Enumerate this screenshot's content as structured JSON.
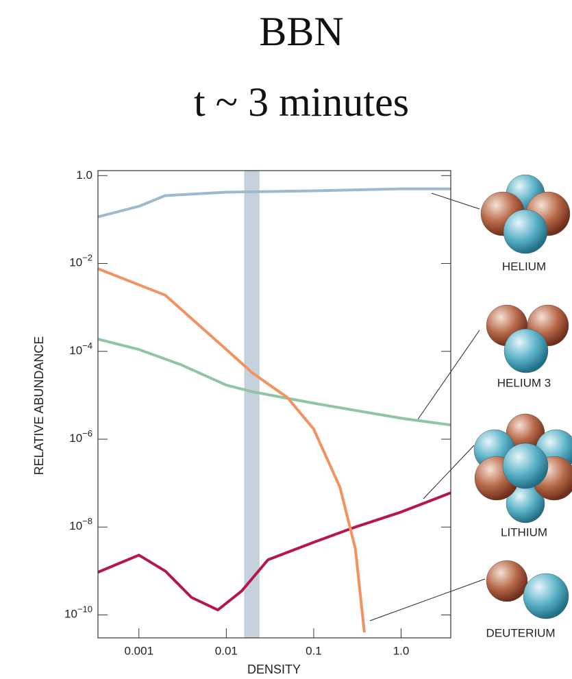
{
  "chart_data": {
    "type": "line",
    "title": "BBN",
    "subtitle": "t ~ 3 minutes",
    "x_label": "DENSITY",
    "y_label": "RELATIVE ABUNDANCE",
    "xscale": "log",
    "yscale": "log",
    "xlim": [
      0.00034,
      3.7
    ],
    "ylim": [
      3e-11,
      1.3
    ],
    "xticks": [
      0.001,
      0.01,
      0.1,
      {
        "value": 1,
        "label": "1.0"
      }
    ],
    "yticks": [
      {
        "value": 1,
        "label": "1.0"
      },
      {
        "value": 0.01,
        "label": "10−2"
      },
      {
        "value": 0.0001,
        "label": "10−4"
      },
      {
        "value": 1e-06,
        "label": "10−6"
      },
      {
        "value": 1e-08,
        "label": "10−8"
      },
      {
        "value": 1e-10,
        "label": "10−10"
      }
    ],
    "band": [
      0.016,
      0.024
    ],
    "band_color": "#c5d1dc",
    "series": [
      {
        "name": "HELIUM",
        "color": "#9fb9cc",
        "x": [
          0.00034,
          0.001,
          0.002,
          0.01,
          0.1,
          1,
          3.7
        ],
        "values": [
          0.115,
          0.2,
          0.35,
          0.42,
          0.45,
          0.5,
          0.5
        ]
      },
      {
        "name": "HELIUM 3",
        "color": "#8fc5a4",
        "x": [
          0.00034,
          0.001,
          0.003,
          0.01,
          0.02,
          0.1,
          1,
          3.7
        ],
        "values": [
          0.00019,
          0.00011,
          5e-05,
          1.7e-05,
          1.2e-05,
          6.6e-06,
          3e-06,
          2.1e-06
        ]
      },
      {
        "name": "LITHIUM",
        "color": "#b5174a",
        "x": [
          0.00034,
          0.001,
          0.002,
          0.004,
          0.008,
          0.015,
          0.03,
          0.1,
          0.3,
          1,
          3.7
        ],
        "values": [
          9.4e-10,
          2.3e-09,
          1e-09,
          2.5e-10,
          1.3e-10,
          3.5e-10,
          1.8e-09,
          4.5e-09,
          1e-08,
          2.2e-08,
          6e-08
        ]
      },
      {
        "name": "DEUTERIUM",
        "color": "#f4925f",
        "x": [
          0.00034,
          0.002,
          0.01,
          0.02,
          0.05,
          0.1,
          0.2,
          0.3,
          0.38
        ],
        "values": [
          0.0076,
          0.0019,
          0.00011,
          3.2e-05,
          8.9e-06,
          1.7e-06,
          8e-08,
          3.2e-09,
          4e-11
        ]
      }
    ]
  }
}
